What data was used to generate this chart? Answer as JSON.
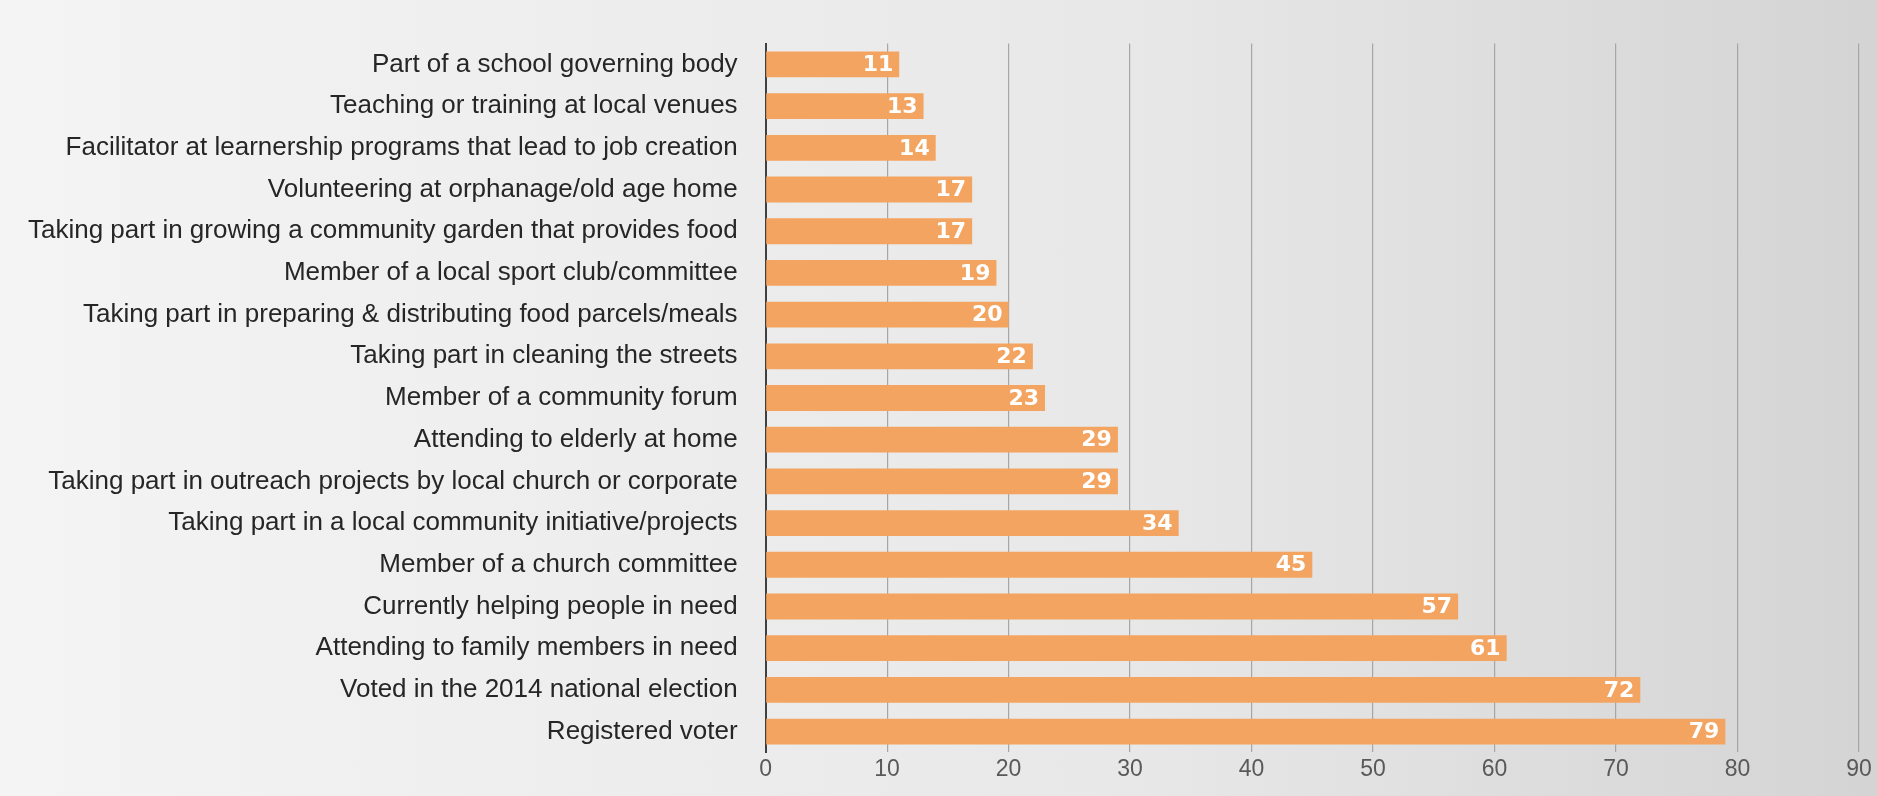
{
  "chart_data": {
    "type": "bar",
    "orientation": "horizontal",
    "categories": [
      "Part of a school governing body",
      "Teaching or training at local venues",
      "Facilitator at learnership programs that lead to job creation",
      "Volunteering at orphanage/old age home",
      "Taking part in growing a community garden that provides food",
      "Member of a local sport club/committee",
      "Taking part in preparing & distributing food parcels/meals",
      "Taking part in cleaning the streets",
      "Member of a community forum",
      "Attending to elderly at home",
      "Taking part in outreach projects by local church or corporate",
      "Taking part in a local community initiative/projects",
      "Member of a church committee",
      "Currently helping people in need",
      "Attending to family members in need",
      "Voted in the 2014 national election",
      "Registered voter"
    ],
    "values": [
      11,
      13,
      14,
      17,
      17,
      19,
      20,
      22,
      23,
      29,
      29,
      34,
      45,
      57,
      61,
      72,
      79
    ],
    "color": "#f4a461",
    "xlim": [
      0,
      90
    ],
    "xticks": [
      0,
      10,
      20,
      30,
      40,
      50,
      60,
      70,
      80,
      90
    ],
    "grid": "x",
    "legend": false,
    "data_labels": true
  }
}
